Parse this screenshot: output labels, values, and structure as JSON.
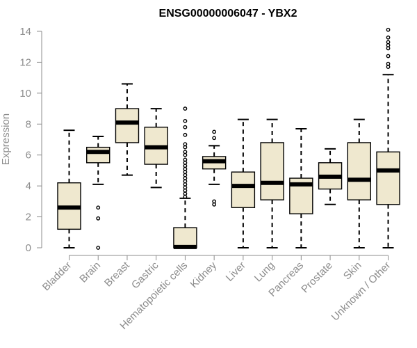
{
  "chart_data": {
    "type": "boxplot",
    "title": "ENSG00000006047 - YBX2",
    "ylabel": "Expression",
    "xlabel": "",
    "ylim": [
      0,
      14
    ],
    "yticks": [
      0,
      2,
      4,
      6,
      8,
      10,
      12,
      14
    ],
    "grid": false,
    "colors": {
      "box_fill": "#efe8cf",
      "axis": "#8c8c8c",
      "stroke": "#000000"
    },
    "categories": [
      "Bladder",
      "Brain",
      "Breast",
      "Gastric",
      "Hematopoietic cells",
      "Kidney",
      "Liver",
      "Lung",
      "Pancreas",
      "Prostate",
      "Skin",
      "Unknown / Other"
    ],
    "boxes": [
      {
        "category": "Bladder",
        "whisker_low": 0.0,
        "q1": 1.2,
        "median": 2.6,
        "q3": 4.2,
        "whisker_high": 7.6,
        "outliers": []
      },
      {
        "category": "Brain",
        "whisker_low": 4.1,
        "q1": 5.5,
        "median": 6.2,
        "q3": 6.5,
        "whisker_high": 7.2,
        "outliers": [
          2.6,
          1.9,
          0.0
        ]
      },
      {
        "category": "Breast",
        "whisker_low": 4.7,
        "q1": 6.8,
        "median": 8.1,
        "q3": 9.0,
        "whisker_high": 10.6,
        "outliers": []
      },
      {
        "category": "Gastric",
        "whisker_low": 3.9,
        "q1": 5.4,
        "median": 6.5,
        "q3": 7.8,
        "whisker_high": 9.0,
        "outliers": []
      },
      {
        "category": "Hematopoietic cells",
        "whisker_low": 0.0,
        "q1": 0.0,
        "median": 0.05,
        "q3": 1.3,
        "whisker_high": 3.2,
        "outliers": [
          3.3,
          3.5,
          3.7,
          3.9,
          4.1,
          4.3,
          4.5,
          4.7,
          4.9,
          5.1,
          5.3,
          5.5,
          5.7,
          6.0,
          6.2,
          6.5,
          6.7,
          7.3,
          7.8,
          8.2,
          9.0
        ]
      },
      {
        "category": "Kidney",
        "whisker_low": 4.1,
        "q1": 5.1,
        "median": 5.6,
        "q3": 5.9,
        "whisker_high": 6.6,
        "outliers": [
          7.1,
          7.5,
          3.0,
          2.8
        ]
      },
      {
        "category": "Liver",
        "whisker_low": 0.0,
        "q1": 2.6,
        "median": 4.0,
        "q3": 4.9,
        "whisker_high": 8.3,
        "outliers": []
      },
      {
        "category": "Lung",
        "whisker_low": 0.0,
        "q1": 3.1,
        "median": 4.2,
        "q3": 6.8,
        "whisker_high": 8.3,
        "outliers": []
      },
      {
        "category": "Pancreas",
        "whisker_low": 0.0,
        "q1": 2.2,
        "median": 4.1,
        "q3": 4.5,
        "whisker_high": 7.7,
        "outliers": []
      },
      {
        "category": "Prostate",
        "whisker_low": 2.8,
        "q1": 3.8,
        "median": 4.6,
        "q3": 5.5,
        "whisker_high": 6.4,
        "outliers": []
      },
      {
        "category": "Skin",
        "whisker_low": 0.0,
        "q1": 3.1,
        "median": 4.4,
        "q3": 6.8,
        "whisker_high": 8.3,
        "outliers": []
      },
      {
        "category": "Unknown / Other",
        "whisker_low": 0.0,
        "q1": 2.8,
        "median": 5.0,
        "q3": 6.2,
        "whisker_high": 11.2,
        "outliers": [
          11.7,
          11.9,
          12.4,
          12.9,
          13.1,
          13.3,
          13.6,
          14.1
        ]
      }
    ]
  }
}
